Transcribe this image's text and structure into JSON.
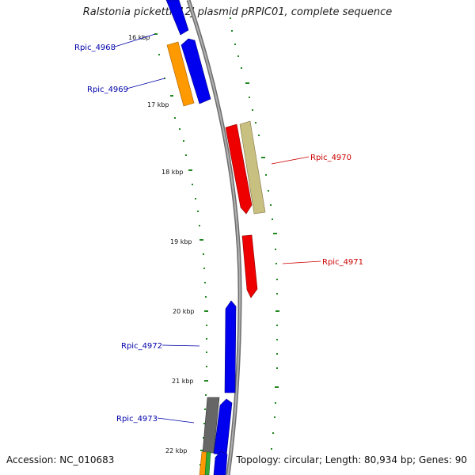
{
  "title": "Ralstonia pickettii 12J plasmid pRPIC01, complete sequence",
  "accession": "Accession: NC_010683",
  "topology": "Topology: circular; Length: 80,934 bp; Genes: 90",
  "tick_labels": [
    "16 kbp",
    "17 kbp",
    "18 kbp",
    "19 kbp",
    "20 kbp",
    "21 kbp",
    "22 kbp"
  ],
  "genes": [
    {
      "label": "Rpic_4968",
      "strand": "plus",
      "color": "#0000cc"
    },
    {
      "label": "Rpic_4969",
      "strand": "plus",
      "color": "#0000cc"
    },
    {
      "label": "Rpic_4970",
      "strand": "minus",
      "color": "#dd0000"
    },
    {
      "label": "Rpic_4971",
      "strand": "minus",
      "color": "#dd0000"
    },
    {
      "label": "Rpic_4972",
      "strand": "plus",
      "color": "#0000cc"
    },
    {
      "label": "Rpic_4973",
      "strand": "plus",
      "color": "#0000cc"
    }
  ],
  "colors": {
    "backbone": "#888888",
    "ticks": "#228822",
    "plus_cds": "#0000ee",
    "minus_cds": "#ee0000",
    "orange_feature": "#ff9900",
    "khaki_feature": "#c8c080",
    "gray_feature": "#666666",
    "green_feature": "#33aa33"
  }
}
